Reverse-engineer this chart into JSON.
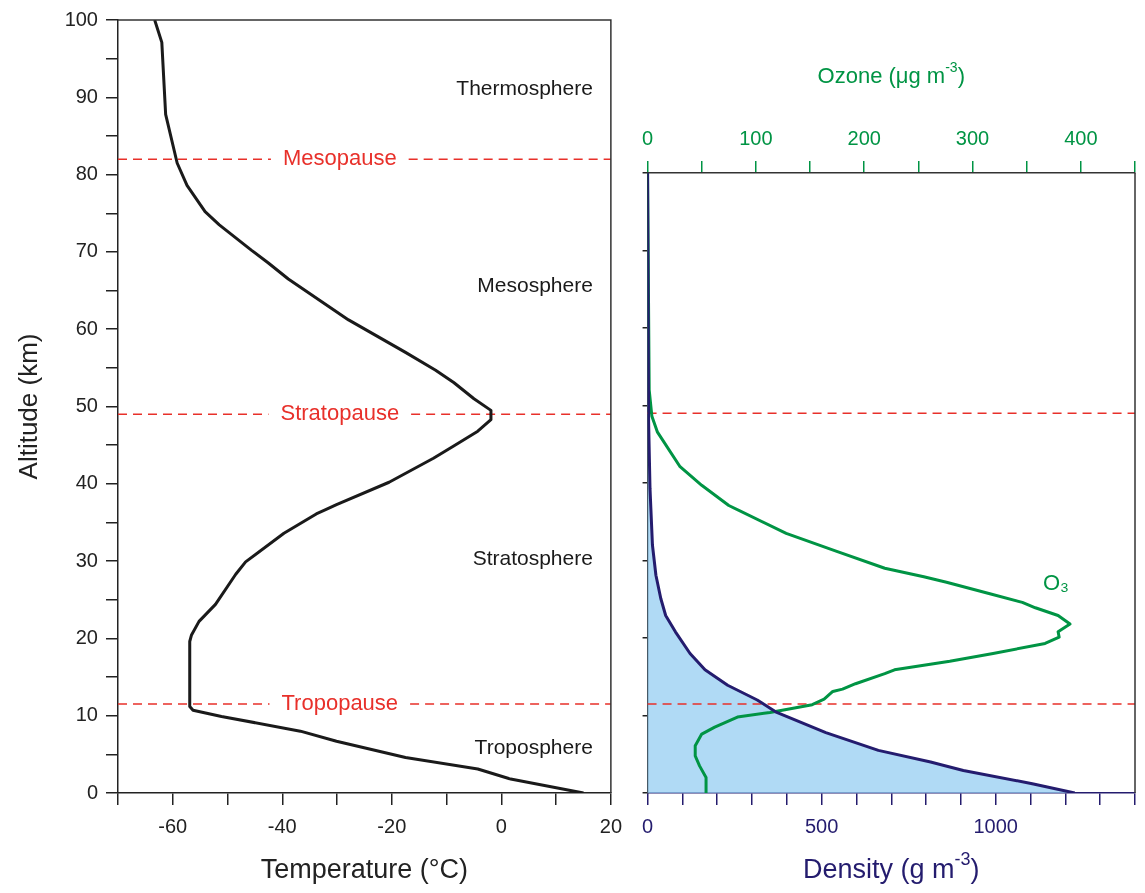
{
  "chart_data": [
    {
      "type": "line",
      "xlabel": "Temperature (°C)",
      "ylabel": "Altitude (km)",
      "xlim": [
        -70,
        20
      ],
      "xticks": [
        {
          "value": -70,
          "label": null
        },
        -60,
        {
          "value": -50,
          "label": null
        },
        -40,
        {
          "value": -30,
          "label": null
        },
        -20,
        {
          "value": -10,
          "label": null
        },
        0,
        {
          "value": 10,
          "label": null
        },
        20
      ],
      "ylim": [
        0,
        100
      ],
      "yticks": [
        0,
        {
          "value": 5,
          "label": null
        },
        10,
        {
          "value": 15,
          "label": null
        },
        20,
        {
          "value": 25,
          "label": null
        },
        30,
        {
          "value": 35,
          "label": null
        },
        40,
        {
          "value": 45,
          "label": null
        },
        50,
        {
          "value": 55,
          "label": null
        },
        60,
        {
          "value": 65,
          "label": null
        },
        70,
        {
          "value": 75,
          "label": null
        },
        80,
        {
          "value": 85,
          "label": null
        },
        90,
        {
          "value": 95,
          "label": null
        },
        100
      ],
      "series": [
        {
          "color": "#1a1a1a",
          "x": [
            15.0,
            1.7,
            -4.3,
            -17.5,
            -30.1,
            -36.7,
            -51.1,
            -56.3,
            -56.9,
            -56.9,
            -56.6,
            -55.2,
            -52.2,
            -48.5,
            -46.7,
            -39.7,
            -33.8,
            -30.1,
            -20.5,
            -12.4,
            -8.7,
            -4.3,
            -1.9,
            -1.9,
            -5.0,
            -8.7,
            -12.0,
            -17.5,
            -27.9,
            -38.9,
            -42.6,
            -45.6,
            -51.5,
            -54.1,
            -57.4,
            -59.2,
            -61.3,
            -62.0,
            -63.3
          ],
          "values": [
            0,
            1.8,
            3.1,
            4.6,
            6.7,
            8.0,
            9.9,
            10.7,
            11.2,
            19.6,
            20.4,
            22.2,
            24.4,
            28.3,
            29.9,
            33.6,
            36.1,
            37.3,
            40.2,
            43.3,
            44.9,
            46.8,
            48.3,
            49.5,
            51.0,
            53.1,
            54.7,
            57.0,
            61.2,
            66.5,
            68.6,
            70.2,
            73.5,
            75.2,
            78.6,
            81.5,
            87.8,
            97.1,
            100
          ]
        }
      ],
      "ref_lines": [
        {
          "axis": "y",
          "value": 82,
          "label": "Mesopause",
          "color": "#e8302a",
          "line_style": "dashed"
        },
        {
          "axis": "y",
          "value": 49,
          "label": "Stratopause",
          "color": "#e8302a",
          "line_style": "dashed"
        },
        {
          "axis": "y",
          "value": 11.5,
          "label": "Tropopause",
          "color": "#e8302a",
          "line_style": "dashed"
        }
      ],
      "annotations": [
        "Thermosphere",
        "Mesosphere",
        "Stratosphere",
        "Troposphere"
      ],
      "grid": false,
      "legend": false,
      "marker": "none",
      "line_style": "solid"
    },
    {
      "type": "area",
      "xlabel": "Density (g m$^{-3}$)",
      "x2label": "Ozone (μg m$^{-3}$)",
      "xlim": [
        0,
        1400
      ],
      "xticks": [
        0,
        {
          "value": 100,
          "label": null
        },
        {
          "value": 200,
          "label": null
        },
        {
          "value": 300,
          "label": null
        },
        {
          "value": 400,
          "label": null
        },
        500,
        {
          "value": 600,
          "label": null
        },
        {
          "value": 700,
          "label": null
        },
        {
          "value": 800,
          "label": null
        },
        {
          "value": 900,
          "label": null
        },
        1000,
        {
          "value": 1100,
          "label": null
        },
        {
          "value": 1200,
          "label": null
        },
        {
          "value": 1300,
          "label": null
        },
        {
          "value": 1400,
          "label": null
        }
      ],
      "x2lim": [
        0,
        450
      ],
      "x2ticks": [
        0,
        {
          "value": 50,
          "label": null
        },
        100,
        {
          "value": 150,
          "label": null
        },
        200,
        {
          "value": 250,
          "label": null
        },
        300,
        {
          "value": 350,
          "label": null
        },
        400,
        {
          "value": 450,
          "label": null
        }
      ],
      "ylim": [
        0,
        80
      ],
      "yticks": [
        0,
        10,
        20,
        30,
        40,
        50,
        60,
        70,
        80
      ],
      "tick_labels": "x",
      "series": [
        {
          "color": "#241c6e",
          "x": [
            1227,
            1105,
            907,
            813,
            663,
            512,
            371,
            315,
            230,
            165,
            122,
            80,
            52,
            38,
            24,
            14,
            7,
            3,
            0
          ],
          "values": [
            0,
            1.2,
            2.9,
            4.0,
            5.5,
            7.8,
            10.4,
            12.0,
            13.9,
            15.9,
            18.0,
            20.8,
            22.9,
            25.1,
            28.1,
            32.0,
            39.3,
            47.9,
            80
          ]
        },
        {
          "type": "line",
          "name": "O₃",
          "axis": "x2",
          "color": "#009444",
          "x": [
            54,
            54,
            48,
            44,
            44,
            50,
            62,
            83,
            113,
            152,
            163,
            171,
            180,
            192,
            219,
            228,
            279,
            319,
            367,
            380,
            379,
            390,
            379,
            358,
            346,
            316,
            276,
            255,
            219,
            174,
            128,
            75,
            50,
            30,
            9,
            4,
            1.5,
            0
          ],
          "values": [
            0,
            2.0,
            3.5,
            4.8,
            6.1,
            7.6,
            8.5,
            9.8,
            10.4,
            11.4,
            12.1,
            13.1,
            13.4,
            14.1,
            15.4,
            15.9,
            17.0,
            18.0,
            19.3,
            20.1,
            20.8,
            21.8,
            22.9,
            23.9,
            24.6,
            25.7,
            27.2,
            27.9,
            29.0,
            31.2,
            33.5,
            37.1,
            39.7,
            42.1,
            46.6,
            48.6,
            52,
            80
          ]
        }
      ],
      "ref_lines": [
        {
          "axis": "y",
          "value": 49,
          "color": "#e8302a",
          "line_style": "dashed"
        },
        {
          "axis": "y",
          "value": 11.5,
          "color": "#e8302a",
          "line_style": "dashed"
        }
      ],
      "grid": false,
      "legend": false,
      "marker": "none",
      "line_style": "solid"
    }
  ]
}
